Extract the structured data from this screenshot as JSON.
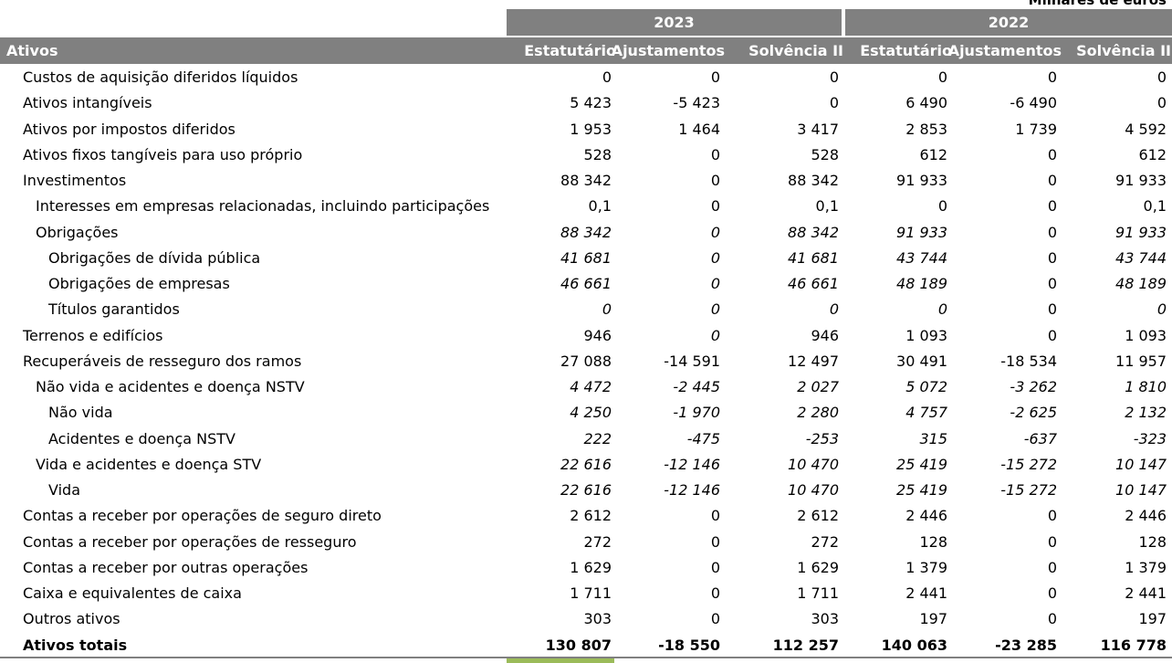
{
  "unit_note": "Milhares de euros",
  "years": [
    "2023",
    "2022"
  ],
  "header": {
    "label": "Ativos",
    "columns": [
      "Estatutário",
      "Ajustamentos",
      "Solvência II",
      "Estatutário",
      "Ajustamentos",
      "Solvência II"
    ]
  },
  "rows": [
    {
      "label": "Custos de aquisição diferidos líquidos",
      "indent": 1,
      "italic": false,
      "values": [
        "0",
        "0",
        "0",
        "0",
        "0",
        "0"
      ]
    },
    {
      "label": "Ativos intangíveis",
      "indent": 1,
      "italic": false,
      "values": [
        "5 423",
        "-5 423",
        "0",
        "6 490",
        "-6 490",
        "0"
      ]
    },
    {
      "label": "Ativos por impostos diferidos",
      "indent": 1,
      "italic": false,
      "values": [
        "1 953",
        "1 464",
        "3 417",
        "2 853",
        "1 739",
        "4 592"
      ]
    },
    {
      "label": "Ativos fixos tangíveis para uso próprio",
      "indent": 1,
      "italic": false,
      "values": [
        "528",
        "0",
        "528",
        "612",
        "0",
        "612"
      ]
    },
    {
      "label": "Investimentos",
      "indent": 1,
      "italic": false,
      "values": [
        "88 342",
        "0",
        "88 342",
        "91 933",
        "0",
        "91 933"
      ]
    },
    {
      "label": "Interesses em empresas relacionadas, incluindo participações",
      "indent": 2,
      "italic": false,
      "values": [
        "0,1",
        "0",
        "0,1",
        "0",
        "0",
        "0,1"
      ]
    },
    {
      "label": "Obrigações",
      "indent": 2,
      "italic": true,
      "values": [
        "88 342",
        "0",
        "88 342",
        "91 933",
        "0",
        "91 933"
      ],
      "upright": [
        4
      ]
    },
    {
      "label": "Obrigações de dívida pública",
      "indent": 3,
      "italic": true,
      "values": [
        "41 681",
        "0",
        "41 681",
        "43 744",
        "0",
        "43 744"
      ],
      "upright": [
        4
      ]
    },
    {
      "label": "Obrigações de empresas",
      "indent": 3,
      "italic": true,
      "values": [
        "46 661",
        "0",
        "46 661",
        "48 189",
        "0",
        "48 189"
      ],
      "upright": [
        4
      ]
    },
    {
      "label": "Títulos garantidos",
      "indent": 3,
      "italic": true,
      "values": [
        "0",
        "0",
        "0",
        "0",
        "0",
        "0"
      ],
      "upright": [
        4
      ]
    },
    {
      "label": "Terrenos e edifícios",
      "indent": 1,
      "italic": false,
      "values": [
        "946",
        "0",
        "946",
        "1 093",
        "0",
        "1 093"
      ],
      "italic_cols": [
        1
      ]
    },
    {
      "label": "Recuperáveis de resseguro dos ramos",
      "indent": 1,
      "italic": false,
      "values": [
        "27 088",
        "-14 591",
        "12 497",
        "30 491",
        "-18 534",
        "11 957"
      ]
    },
    {
      "label": "Não vida e acidentes e doença NSTV",
      "indent": 2,
      "italic": true,
      "values": [
        "4 472",
        "-2 445",
        "2 027",
        "5 072",
        "-3 262",
        "1 810"
      ]
    },
    {
      "label": "Não vida",
      "indent": 3,
      "italic": true,
      "values": [
        "4 250",
        "-1 970",
        "2 280",
        "4 757",
        "-2 625",
        "2 132"
      ]
    },
    {
      "label": "Acidentes e doença NSTV",
      "indent": 3,
      "italic": true,
      "values": [
        "222",
        "-475",
        "-253",
        "315",
        "-637",
        "-323"
      ]
    },
    {
      "label": "Vida e acidentes e doença STV",
      "indent": 2,
      "italic": true,
      "values": [
        "22 616",
        "-12 146",
        "10 470",
        "25 419",
        "-15 272",
        "10 147"
      ]
    },
    {
      "label": "Vida",
      "indent": 3,
      "italic": true,
      "values": [
        "22 616",
        "-12 146",
        "10 470",
        "25 419",
        "-15 272",
        "10 147"
      ]
    },
    {
      "label": "Contas a receber por operações de seguro direto",
      "indent": 1,
      "italic": false,
      "values": [
        "2 612",
        "0",
        "2 612",
        "2 446",
        "0",
        "2 446"
      ]
    },
    {
      "label": "Contas a receber por operações de resseguro",
      "indent": 1,
      "italic": false,
      "values": [
        "272",
        "0",
        "272",
        "128",
        "0",
        "128"
      ]
    },
    {
      "label": "Contas a receber por outras operações",
      "indent": 1,
      "italic": false,
      "values": [
        "1 629",
        "0",
        "1 629",
        "1 379",
        "0",
        "1 379"
      ]
    },
    {
      "label": "Caixa e equivalentes de caixa",
      "indent": 1,
      "italic": false,
      "values": [
        "1 711",
        "0",
        "1 711",
        "2 441",
        "0",
        "2 441"
      ]
    },
    {
      "label": "Outros ativos",
      "indent": 1,
      "italic": false,
      "values": [
        "303",
        "0",
        "303",
        "197",
        "0",
        "197"
      ]
    },
    {
      "label": "Ativos totais",
      "indent": 1,
      "italic": false,
      "total": true,
      "values": [
        "130 807",
        "-18 550",
        "112 257",
        "140 063",
        "-23 285",
        "116 778"
      ]
    }
  ]
}
